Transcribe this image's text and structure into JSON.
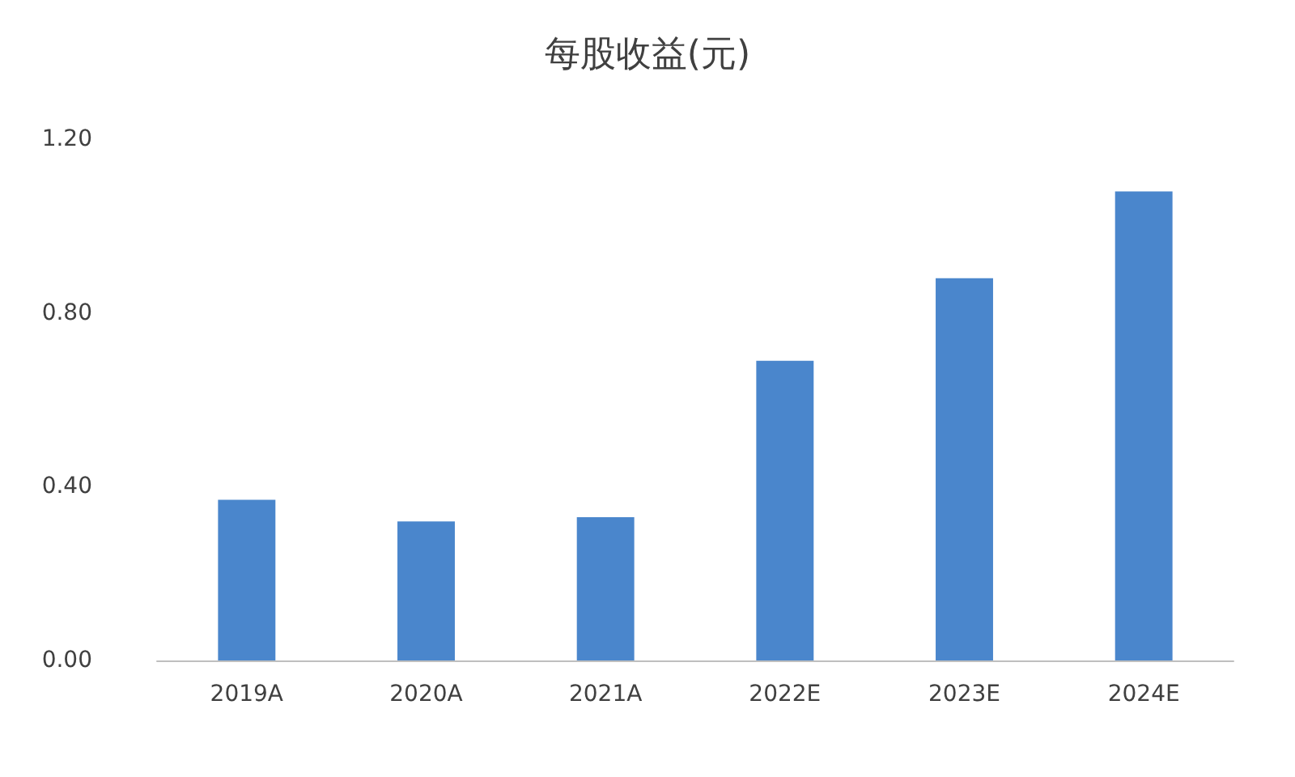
{
  "chart_data": {
    "type": "bar",
    "title": "每股收益(元)",
    "categories": [
      "2019A",
      "2020A",
      "2021A",
      "2022E",
      "2023E",
      "2024E"
    ],
    "values": [
      0.37,
      0.32,
      0.33,
      0.69,
      0.88,
      1.08
    ],
    "color": "#4a86cc",
    "ylim": [
      0,
      1.2
    ],
    "yticks": [
      {
        "value": 0,
        "label": "0.00"
      },
      {
        "value": 0.4,
        "label": "0.40"
      },
      {
        "value": 0.8,
        "label": "0.80"
      },
      {
        "value": 1.2,
        "label": "1.20"
      }
    ],
    "data_labels": false
  }
}
